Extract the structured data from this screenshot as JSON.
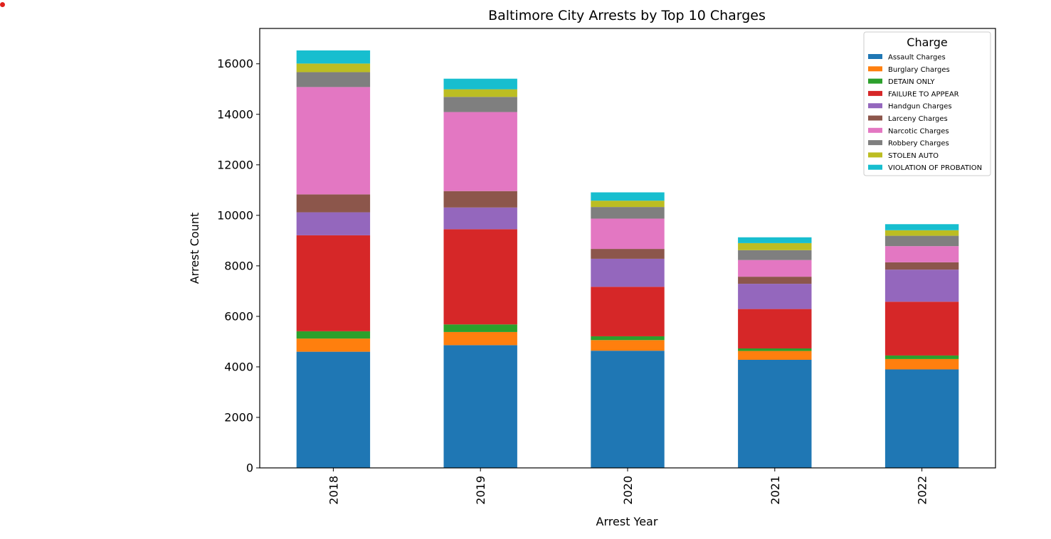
{
  "chart_data": {
    "type": "bar",
    "stacked": true,
    "title": "Baltimore City Arrests by Top 10 Charges",
    "xlabel": "Arrest Year",
    "ylabel": "Arrest Count",
    "categories": [
      "2018",
      "2019",
      "2020",
      "2021",
      "2022"
    ],
    "ylim": [
      0,
      17400
    ],
    "yticks": [
      0,
      2000,
      4000,
      6000,
      8000,
      10000,
      12000,
      14000,
      16000
    ],
    "legend": {
      "title": "Charge",
      "placement": "top-right"
    },
    "grid": false,
    "series": [
      {
        "name": "Assault Charges",
        "color": "#1f77b4",
        "values": [
          4600,
          4860,
          4640,
          4280,
          3900
        ]
      },
      {
        "name": "Burglary Charges",
        "color": "#ff7f0e",
        "values": [
          520,
          520,
          420,
          350,
          410
        ]
      },
      {
        "name": "DETAIN ONLY",
        "color": "#2ca02c",
        "values": [
          290,
          300,
          150,
          100,
          140
        ]
      },
      {
        "name": "FAILURE TO APPEAR",
        "color": "#d62728",
        "values": [
          3800,
          3770,
          1960,
          1560,
          2130
        ]
      },
      {
        "name": "Handgun Charges",
        "color": "#9467bd",
        "values": [
          910,
          860,
          1110,
          1000,
          1270
        ]
      },
      {
        "name": "Larceny Charges",
        "color": "#8c564b",
        "values": [
          710,
          650,
          390,
          280,
          290
        ]
      },
      {
        "name": "Narcotic Charges",
        "color": "#e377c2",
        "values": [
          4250,
          3130,
          1200,
          660,
          640
        ]
      },
      {
        "name": "Robbery Charges",
        "color": "#7f7f7f",
        "values": [
          590,
          600,
          460,
          390,
          410
        ]
      },
      {
        "name": "STOLEN AUTO",
        "color": "#bcbd22",
        "values": [
          340,
          300,
          250,
          280,
          220
        ]
      },
      {
        "name": "VIOLATION OF PROBATION",
        "color": "#17becf",
        "values": [
          520,
          420,
          330,
          230,
          240
        ]
      }
    ]
  }
}
